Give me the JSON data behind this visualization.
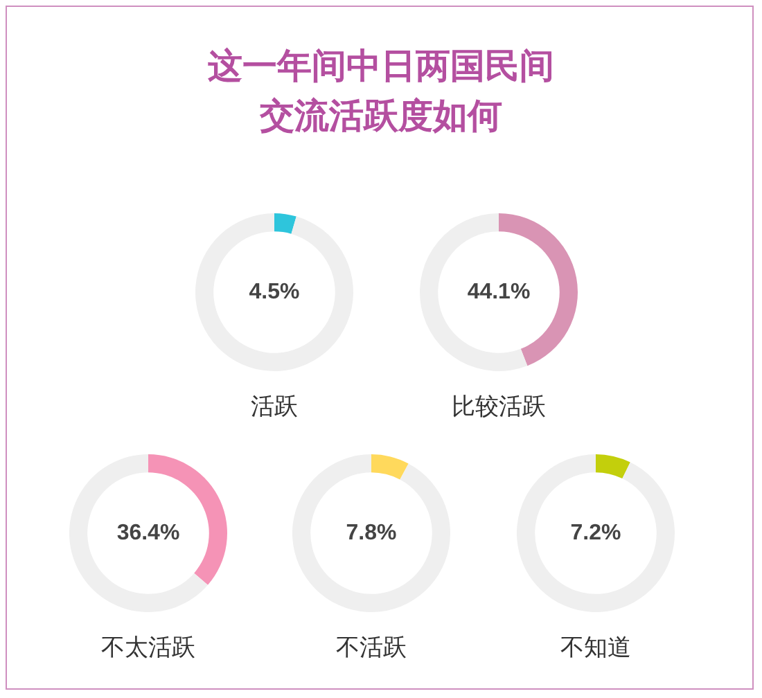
{
  "chart_data": [
    {
      "type": "donut",
      "title": "这一年间中日两国民间交流活跃度如何",
      "xlabel": "活跃",
      "categories": [
        null,
        null
      ],
      "values": [
        4.5,
        95.5
      ],
      "colors": [
        "#2ec5dc",
        "#efefef"
      ],
      "value_labels": [
        "4.5%",
        null
      ]
    },
    {
      "type": "donut",
      "xlabel": "比较活跃",
      "categories": [
        null,
        null
      ],
      "values": [
        44.1,
        55.9
      ],
      "colors": [
        "#d994b4",
        "#efefef"
      ],
      "value_labels": [
        "44.1%",
        null
      ]
    },
    {
      "type": "donut",
      "xlabel": "不太活跃",
      "categories": [
        null,
        null
      ],
      "values": [
        36.4,
        63.6
      ],
      "colors": [
        "#f593b6",
        "#efefef"
      ],
      "value_labels": [
        "36.4%",
        null
      ]
    },
    {
      "type": "donut",
      "xlabel": "不活跃",
      "categories": [
        null,
        null
      ],
      "values": [
        7.8,
        92.2
      ],
      "colors": [
        "#ffd95c",
        "#efefef"
      ],
      "value_labels": [
        "7.8%",
        null
      ]
    },
    {
      "type": "donut",
      "xlabel": "不知道",
      "categories": [
        null,
        null
      ],
      "values": [
        7.2,
        92.8
      ],
      "colors": [
        "#c3cf0c",
        "#efefef"
      ],
      "value_labels": [
        "7.2%",
        null
      ]
    }
  ]
}
